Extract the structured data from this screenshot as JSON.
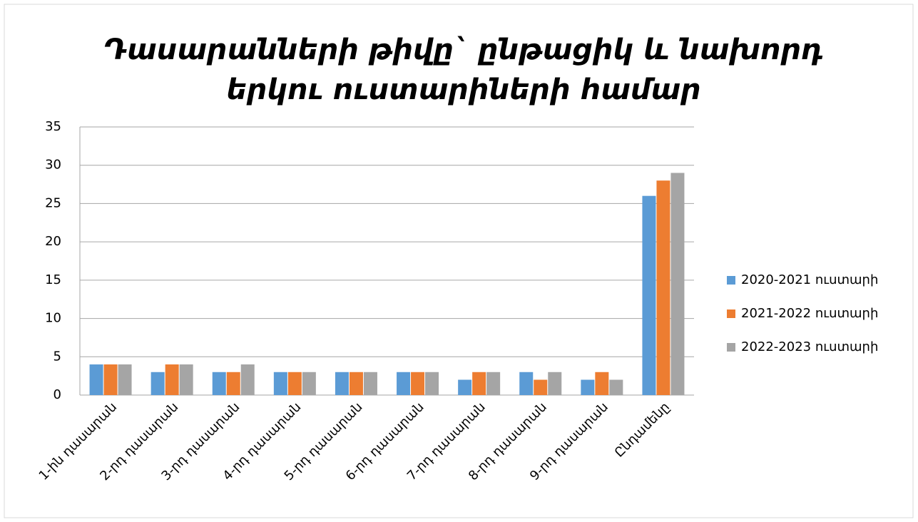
{
  "chart_data": {
    "type": "bar",
    "title": [
      "Դասարանների թիվը` ընթացիկ և նախորդ",
      "երկու ուստարիների համար"
    ],
    "categories": [
      "1-ին դասարան",
      "2-րդ դասարան",
      "3-րդ դասարան",
      "4-րդ դասարան",
      "5-րդ դասարան",
      "6-րդ դասարան",
      "7-րդ դասարան",
      "8-րդ դասարան",
      "9-րդ դասարան",
      "Ընդամենը"
    ],
    "series": [
      {
        "name": "2020-2021 ուստարի",
        "color": "#5b9bd5",
        "values": [
          4,
          3,
          3,
          3,
          3,
          3,
          2,
          3,
          2,
          26
        ]
      },
      {
        "name": "2021-2022 ուստարի",
        "color": "#ed7d31",
        "values": [
          4,
          4,
          3,
          3,
          3,
          3,
          3,
          2,
          3,
          28
        ]
      },
      {
        "name": "2022-2023 ուստարի",
        "color": "#a5a5a5",
        "values": [
          4,
          4,
          4,
          3,
          3,
          3,
          3,
          3,
          2,
          29
        ]
      }
    ],
    "ylim": [
      0,
      35
    ],
    "yticks": [
      0,
      5,
      10,
      15,
      20,
      25,
      30,
      35
    ],
    "grid": true,
    "legend": "right"
  }
}
